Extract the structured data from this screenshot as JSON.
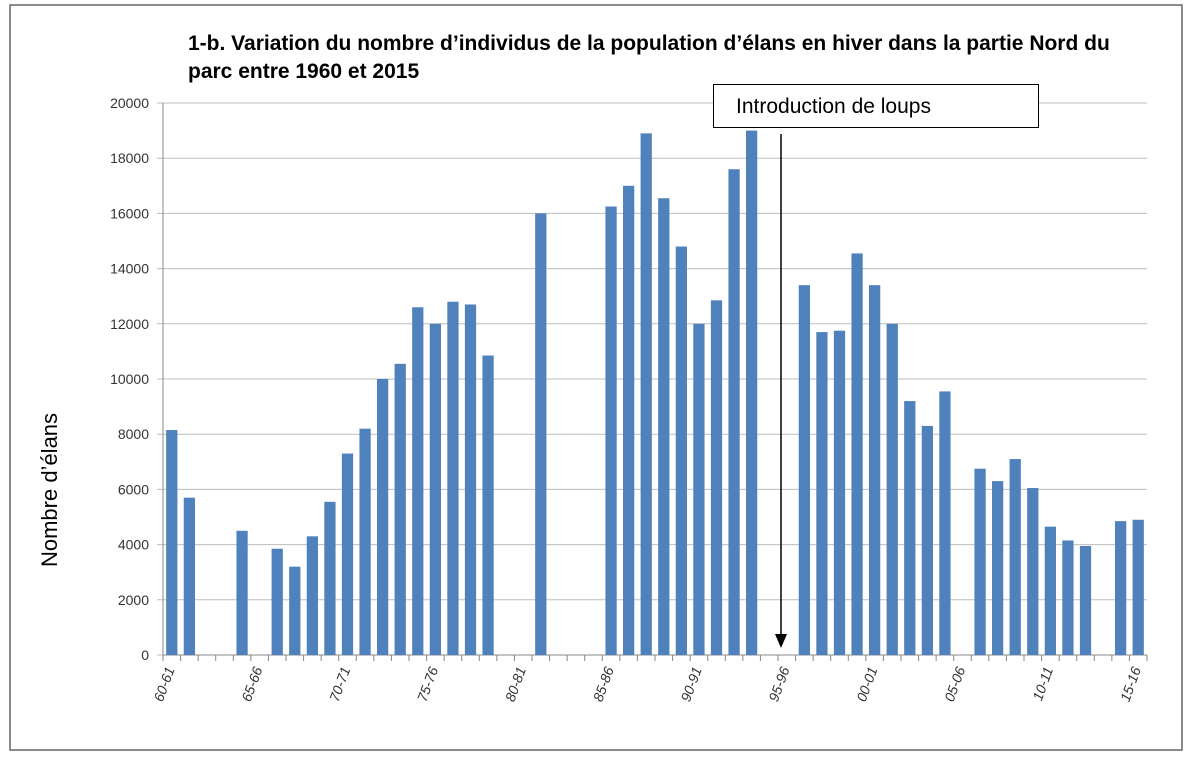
{
  "chart_data": {
    "type": "bar",
    "title": "1-b. Variation du nombre d’individus de la population d’élans en hiver dans la partie Nord du parc entre 1960 et 2015",
    "y_label": "Nombre d’élans",
    "annotation": "Introduction de loups",
    "categories": [
      "60-61",
      null,
      null,
      null,
      null,
      "65-66",
      null,
      null,
      null,
      null,
      "70-71",
      null,
      null,
      null,
      null,
      "75-76",
      null,
      null,
      null,
      null,
      "80-81",
      null,
      null,
      null,
      null,
      "85-86",
      null,
      null,
      null,
      null,
      "90-91",
      null,
      null,
      null,
      null,
      "95-96",
      null,
      null,
      null,
      null,
      "00-01",
      null,
      null,
      null,
      null,
      "05-06",
      null,
      null,
      null,
      null,
      "10-11",
      null,
      null,
      null,
      null,
      "15-16"
    ],
    "values": [
      8150,
      5700,
      null,
      null,
      4500,
      null,
      3850,
      3200,
      4300,
      5550,
      7300,
      8200,
      10000,
      10550,
      12600,
      12000,
      12800,
      12700,
      10850,
      null,
      null,
      16000,
      null,
      null,
      null,
      16250,
      17000,
      18900,
      16550,
      14800,
      12000,
      12850,
      17600,
      19000,
      null,
      null,
      13400,
      11700,
      11750,
      14550,
      13400,
      12000,
      9200,
      8300,
      9550,
      null,
      6750,
      6300,
      7100,
      6050,
      4650,
      4150,
      3950,
      null,
      4850,
      4900
    ],
    "color": "#4f81bd",
    "ylim": [
      0,
      20000
    ],
    "yticks": [
      0,
      2000,
      4000,
      6000,
      8000,
      10000,
      12000,
      14000,
      16000,
      18000,
      20000
    ],
    "grid": true
  }
}
